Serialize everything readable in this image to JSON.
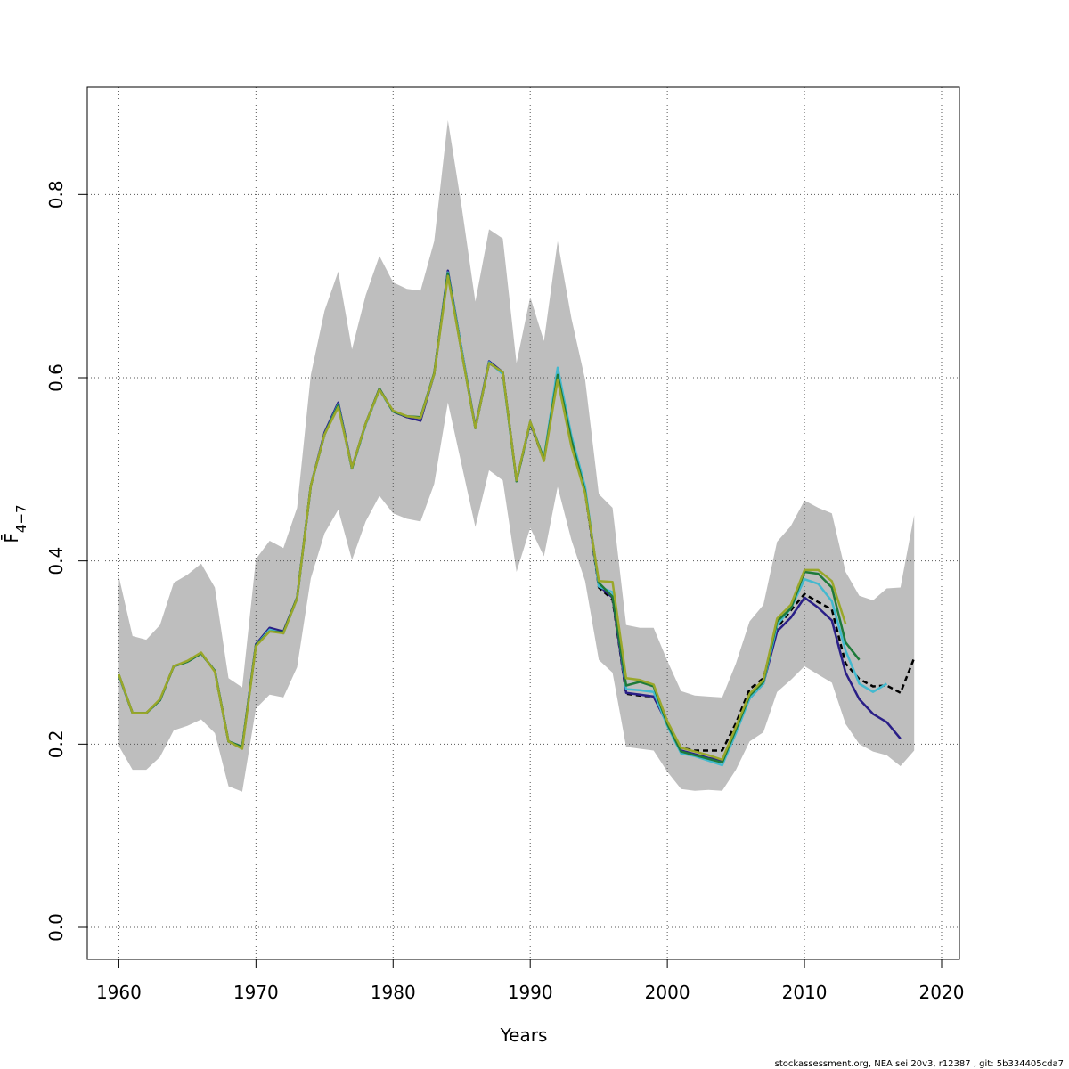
{
  "chart_data": {
    "type": "line",
    "title": "",
    "xlabel": "Years",
    "ylabel": "F̄",
    "ylabel_sub": "4−7",
    "xlim": [
      1957.7,
      2021.3
    ],
    "ylim": [
      -0.035,
      0.917
    ],
    "xticks": [
      1960,
      1970,
      1980,
      1990,
      2000,
      2010,
      2020
    ],
    "yticks": [
      0.0,
      0.2,
      0.4,
      0.6,
      0.8
    ],
    "ytick_labels": [
      "0.0",
      "0.2",
      "0.4",
      "0.6",
      "0.8"
    ],
    "grid": true,
    "legend": "none",
    "band": {
      "color": "#bebebe",
      "x": [
        1960,
        1961,
        1962,
        1963,
        1964,
        1965,
        1966,
        1967,
        1968,
        1969,
        1970,
        1971,
        1972,
        1973,
        1974,
        1975,
        1976,
        1977,
        1978,
        1979,
        1980,
        1981,
        1982,
        1983,
        1984,
        1985,
        1986,
        1987,
        1988,
        1989,
        1990,
        1991,
        1992,
        1993,
        1994,
        1995,
        1996,
        1997,
        1998,
        1999,
        2000,
        2001,
        2002,
        2003,
        2004,
        2005,
        2006,
        2007,
        2008,
        2009,
        2010,
        2011,
        2012,
        2013,
        2014,
        2015,
        2016,
        2017,
        2018
      ],
      "upper": [
        0.383,
        0.318,
        0.314,
        0.33,
        0.376,
        0.385,
        0.397,
        0.371,
        0.272,
        0.262,
        0.402,
        0.422,
        0.414,
        0.458,
        0.603,
        0.673,
        0.716,
        0.631,
        0.69,
        0.733,
        0.704,
        0.697,
        0.695,
        0.749,
        0.881,
        0.787,
        0.683,
        0.762,
        0.752,
        0.616,
        0.688,
        0.64,
        0.749,
        0.665,
        0.598,
        0.473,
        0.458,
        0.33,
        0.327,
        0.327,
        0.291,
        0.258,
        0.253,
        0.252,
        0.251,
        0.288,
        0.334,
        0.352,
        0.421,
        0.438,
        0.466,
        0.458,
        0.452,
        0.388,
        0.362,
        0.357,
        0.37,
        0.371,
        0.45
      ],
      "lower": [
        0.198,
        0.172,
        0.172,
        0.186,
        0.215,
        0.22,
        0.227,
        0.212,
        0.154,
        0.148,
        0.239,
        0.254,
        0.251,
        0.284,
        0.381,
        0.43,
        0.456,
        0.401,
        0.443,
        0.471,
        0.452,
        0.446,
        0.443,
        0.484,
        0.573,
        0.505,
        0.437,
        0.499,
        0.488,
        0.388,
        0.436,
        0.405,
        0.481,
        0.423,
        0.378,
        0.292,
        0.278,
        0.197,
        0.195,
        0.193,
        0.17,
        0.151,
        0.149,
        0.15,
        0.149,
        0.172,
        0.203,
        0.213,
        0.257,
        0.27,
        0.285,
        0.276,
        0.267,
        0.222,
        0.2,
        0.192,
        0.188,
        0.176,
        0.193
      ]
    },
    "series": [
      {
        "color": "#000000",
        "dashed": true,
        "x": [
          1960,
          1961,
          1962,
          1963,
          1964,
          1965,
          1966,
          1967,
          1968,
          1969,
          1970,
          1971,
          1972,
          1973,
          1974,
          1975,
          1976,
          1977,
          1978,
          1979,
          1980,
          1981,
          1982,
          1983,
          1984,
          1985,
          1986,
          1987,
          1988,
          1989,
          1990,
          1991,
          1992,
          1993,
          1994,
          1995,
          1996,
          1997,
          1998,
          1999,
          2000,
          2001,
          2002,
          2003,
          2004,
          2005,
          2006,
          2007,
          2008,
          2009,
          2010,
          2011,
          2012,
          2013,
          2014,
          2015,
          2016,
          2017,
          2018
        ],
        "values": [
          0.275,
          0.234,
          0.234,
          0.248,
          0.285,
          0.29,
          0.299,
          0.28,
          0.203,
          0.197,
          0.308,
          0.325,
          0.321,
          0.359,
          0.482,
          0.538,
          0.572,
          0.501,
          0.549,
          0.587,
          0.563,
          0.557,
          0.556,
          0.604,
          0.715,
          0.63,
          0.545,
          0.616,
          0.606,
          0.487,
          0.55,
          0.51,
          0.603,
          0.527,
          0.475,
          0.371,
          0.358,
          0.255,
          0.253,
          0.252,
          0.223,
          0.196,
          0.193,
          0.193,
          0.193,
          0.223,
          0.26,
          0.272,
          0.327,
          0.346,
          0.364,
          0.355,
          0.347,
          0.288,
          0.271,
          0.263,
          0.264,
          0.256,
          0.294
        ]
      },
      {
        "color": "#2a1f87",
        "dashed": false,
        "x": [
          1960,
          1961,
          1962,
          1963,
          1964,
          1965,
          1966,
          1967,
          1968,
          1969,
          1970,
          1971,
          1972,
          1973,
          1974,
          1975,
          1976,
          1977,
          1978,
          1979,
          1980,
          1981,
          1982,
          1983,
          1984,
          1985,
          1986,
          1987,
          1988,
          1989,
          1990,
          1991,
          1992,
          1993,
          1994,
          1995,
          1996,
          1997,
          1998,
          1999,
          2000,
          2001,
          2002,
          2003,
          2004,
          2005,
          2006,
          2007,
          2008,
          2009,
          2010,
          2011,
          2012,
          2013,
          2014,
          2015,
          2016,
          2017
        ],
        "values": [
          0.275,
          0.234,
          0.234,
          0.248,
          0.285,
          0.29,
          0.299,
          0.28,
          0.203,
          0.197,
          0.309,
          0.327,
          0.323,
          0.36,
          0.482,
          0.54,
          0.573,
          0.502,
          0.55,
          0.588,
          0.563,
          0.557,
          0.553,
          0.604,
          0.717,
          0.631,
          0.546,
          0.618,
          0.606,
          0.488,
          0.551,
          0.51,
          0.604,
          0.529,
          0.477,
          0.373,
          0.36,
          0.256,
          0.254,
          0.252,
          0.222,
          0.193,
          0.189,
          0.185,
          0.182,
          0.215,
          0.25,
          0.266,
          0.323,
          0.338,
          0.36,
          0.349,
          0.335,
          0.278,
          0.249,
          0.233,
          0.224,
          0.206
        ]
      },
      {
        "color": "#43b9cf",
        "dashed": false,
        "x": [
          1960,
          1961,
          1962,
          1963,
          1964,
          1965,
          1966,
          1967,
          1968,
          1969,
          1970,
          1971,
          1972,
          1973,
          1974,
          1975,
          1976,
          1977,
          1978,
          1979,
          1980,
          1981,
          1982,
          1983,
          1984,
          1985,
          1986,
          1987,
          1988,
          1989,
          1990,
          1991,
          1992,
          1993,
          1994,
          1995,
          1996,
          1997,
          1998,
          1999,
          2000,
          2001,
          2002,
          2003,
          2004,
          2005,
          2006,
          2007,
          2008,
          2009,
          2010,
          2011,
          2012,
          2013,
          2014,
          2015,
          2016
        ],
        "values": [
          0.275,
          0.234,
          0.234,
          0.248,
          0.285,
          0.29,
          0.299,
          0.28,
          0.203,
          0.197,
          0.308,
          0.325,
          0.321,
          0.359,
          0.482,
          0.538,
          0.571,
          0.501,
          0.549,
          0.587,
          0.563,
          0.558,
          0.556,
          0.604,
          0.715,
          0.631,
          0.545,
          0.617,
          0.604,
          0.487,
          0.551,
          0.512,
          0.611,
          0.537,
          0.481,
          0.372,
          0.366,
          0.26,
          0.259,
          0.257,
          0.22,
          0.19,
          0.187,
          0.182,
          0.177,
          0.212,
          0.25,
          0.266,
          0.33,
          0.348,
          0.38,
          0.375,
          0.356,
          0.302,
          0.266,
          0.257,
          0.266
        ]
      },
      {
        "color": "#1e7a3a",
        "dashed": false,
        "x": [
          1960,
          1961,
          1962,
          1963,
          1964,
          1965,
          1966,
          1967,
          1968,
          1969,
          1970,
          1971,
          1972,
          1973,
          1974,
          1975,
          1976,
          1977,
          1978,
          1979,
          1980,
          1981,
          1982,
          1983,
          1984,
          1985,
          1986,
          1987,
          1988,
          1989,
          1990,
          1991,
          1992,
          1993,
          1994,
          1995,
          1996,
          1997,
          1998,
          1999,
          2000,
          2001,
          2002,
          2003,
          2004,
          2005,
          2006,
          2007,
          2008,
          2009,
          2010,
          2011,
          2012,
          2013,
          2014
        ],
        "values": [
          0.276,
          0.234,
          0.234,
          0.248,
          0.285,
          0.29,
          0.299,
          0.28,
          0.203,
          0.197,
          0.308,
          0.323,
          0.322,
          0.36,
          0.482,
          0.538,
          0.57,
          0.501,
          0.55,
          0.588,
          0.563,
          0.558,
          0.557,
          0.605,
          0.714,
          0.628,
          0.545,
          0.616,
          0.606,
          0.487,
          0.552,
          0.511,
          0.603,
          0.532,
          0.476,
          0.376,
          0.361,
          0.264,
          0.268,
          0.263,
          0.222,
          0.192,
          0.188,
          0.184,
          0.18,
          0.216,
          0.253,
          0.268,
          0.334,
          0.348,
          0.388,
          0.386,
          0.371,
          0.311,
          0.292
        ]
      },
      {
        "color": "#9aa72a",
        "dashed": false,
        "x": [
          1960,
          1961,
          1962,
          1963,
          1964,
          1965,
          1966,
          1967,
          1968,
          1969,
          1970,
          1971,
          1972,
          1973,
          1974,
          1975,
          1976,
          1977,
          1978,
          1979,
          1980,
          1981,
          1982,
          1983,
          1984,
          1985,
          1986,
          1987,
          1988,
          1989,
          1990,
          1991,
          1992,
          1993,
          1994,
          1995,
          1996,
          1997,
          1998,
          1999,
          2000,
          2001,
          2002,
          2003,
          2004,
          2005,
          2006,
          2007,
          2008,
          2009,
          2010,
          2011,
          2012,
          2013
        ],
        "values": [
          0.276,
          0.234,
          0.234,
          0.249,
          0.285,
          0.291,
          0.3,
          0.279,
          0.203,
          0.195,
          0.307,
          0.323,
          0.321,
          0.359,
          0.482,
          0.538,
          0.568,
          0.502,
          0.55,
          0.587,
          0.564,
          0.558,
          0.556,
          0.604,
          0.711,
          0.628,
          0.545,
          0.616,
          0.606,
          0.488,
          0.552,
          0.509,
          0.598,
          0.525,
          0.474,
          0.378,
          0.377,
          0.272,
          0.27,
          0.265,
          0.225,
          0.196,
          0.192,
          0.188,
          0.183,
          0.219,
          0.255,
          0.27,
          0.337,
          0.352,
          0.39,
          0.39,
          0.378,
          0.331
        ]
      }
    ]
  },
  "credit_text": "stockassessment.org, NEA  sei  20v3, r12387 , git: 5b334405cda7"
}
